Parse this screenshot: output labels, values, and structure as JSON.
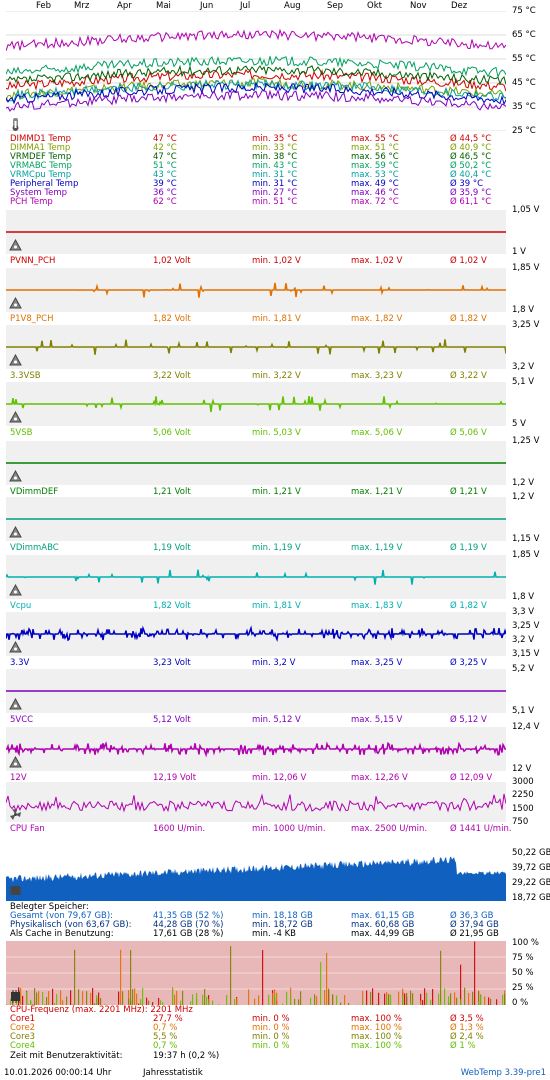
{
  "months": [
    "Feb",
    "Mrz",
    "Apr",
    "Mai",
    "Jun",
    "Jul",
    "Aug",
    "Sep",
    "Okt",
    "Nov",
    "Dez"
  ],
  "temp": {
    "axis": [
      "75 °C",
      "65 °C",
      "55 °C",
      "45 °C",
      "35 °C",
      "25 °C"
    ],
    "rows": [
      {
        "name": "DIMMD1 Temp",
        "cur": "47 °C",
        "min": "min. 35 °C",
        "max": "max. 55 °C",
        "avg": "Ø 44,5 °C",
        "color": "#d00000"
      },
      {
        "name": "DIMMA1 Temp",
        "cur": "42 °C",
        "min": "min. 33 °C",
        "max": "max. 51 °C",
        "avg": "Ø 40,9 °C",
        "color": "#80a000"
      },
      {
        "name": "VRMDEF Temp",
        "cur": "47 °C",
        "min": "min. 38 °C",
        "max": "max. 56 °C",
        "avg": "Ø 46,5 °C",
        "color": "#006000"
      },
      {
        "name": "VRMABC Temp",
        "cur": "51 °C",
        "min": "min. 43 °C",
        "max": "max. 59 °C",
        "avg": "Ø 50,2 °C",
        "color": "#00a060"
      },
      {
        "name": "VRMCpu Temp",
        "cur": "43 °C",
        "min": "min. 31 °C",
        "max": "max. 53 °C",
        "avg": "Ø 40,4 °C",
        "color": "#00a0a0"
      },
      {
        "name": "Peripheral Temp",
        "cur": "39 °C",
        "min": "min. 31 °C",
        "max": "max. 49 °C",
        "avg": "Ø 39 °C",
        "color": "#0000c0"
      },
      {
        "name": "System Temp",
        "cur": "36 °C",
        "min": "min. 27 °C",
        "max": "max. 46 °C",
        "avg": "Ø 35,9 °C",
        "color": "#8000c0"
      },
      {
        "name": "PCH Temp",
        "cur": "62 °C",
        "min": "min. 51 °C",
        "max": "max. 72 °C",
        "avg": "Ø 61,1 °C",
        "color": "#b000b0"
      }
    ]
  },
  "voltages": [
    {
      "name": "PVNN_PCH",
      "cur": "1,02 Volt",
      "min": "min. 1,02 V",
      "max": "max. 1,02 V",
      "avg": "Ø 1,02 V",
      "color": "#d00000",
      "axis": [
        "1,05 V",
        "1 V"
      ]
    },
    {
      "name": "P1V8_PCH",
      "cur": "1,82 Volt",
      "min": "min. 1,81 V",
      "max": "max. 1,82 V",
      "avg": "Ø 1,82 V",
      "color": "#e07000",
      "axis": [
        "1,85 V",
        "1,8 V"
      ]
    },
    {
      "name": "3.3VSB",
      "cur": "3,22 Volt",
      "min": "min. 3,22 V",
      "max": "max. 3,23 V",
      "avg": "Ø 3,22 V",
      "color": "#808000",
      "axis": [
        "3,25 V",
        "3,2 V"
      ]
    },
    {
      "name": "5VSB",
      "cur": "5,06 Volt",
      "min": "min. 5,03 V",
      "max": "max. 5,06 V",
      "avg": "Ø 5,06 V",
      "color": "#60c000",
      "axis": [
        "5,1 V",
        "5 V"
      ]
    },
    {
      "name": "VDimmDEF",
      "cur": "1,21 Volt",
      "min": "min. 1,21 V",
      "max": "max. 1,21 V",
      "avg": "Ø 1,21 V",
      "color": "#008000",
      "axis": [
        "1,25 V",
        "1,2 V"
      ]
    },
    {
      "name": "VDimmABC",
      "cur": "1,19 Volt",
      "min": "min. 1,19 V",
      "max": "max. 1,19 V",
      "avg": "Ø 1,19 V",
      "color": "#00a080",
      "axis": [
        "1,2 V",
        "1,15 V"
      ]
    },
    {
      "name": "Vcpu",
      "cur": "1,82 Volt",
      "min": "min. 1,81 V",
      "max": "max. 1,83 V",
      "avg": "Ø 1,82 V",
      "color": "#00b0b0",
      "axis": [
        "1,85 V",
        "1,8 V"
      ]
    },
    {
      "name": "3.3V",
      "cur": "3,23 Volt",
      "min": "min. 3,2 V",
      "max": "max. 3,25 V",
      "avg": "Ø 3,25 V",
      "color": "#0000c0",
      "axis": [
        "3,3 V",
        "3,25 V",
        "3,2 V",
        "3,15 V"
      ]
    },
    {
      "name": "5VCC",
      "cur": "5,12 Volt",
      "min": "min. 5,12 V",
      "max": "max. 5,15 V",
      "avg": "Ø 5,12 V",
      "color": "#8000c0",
      "axis": [
        "5,2 V",
        "5,1 V"
      ]
    },
    {
      "name": "12V",
      "cur": "12,19 Volt",
      "min": "min. 12,06 V",
      "max": "max. 12,26 V",
      "avg": "Ø 12,09 V",
      "color": "#b000b0",
      "axis": [
        "12,4 V",
        "12 V"
      ]
    }
  ],
  "fan": {
    "name": "CPU Fan",
    "cur": "1600 U/min.",
    "min": "min. 1000 U/min.",
    "max": "max. 2500 U/min.",
    "avg": "Ø 1441 U/min.",
    "color": "#b000b0",
    "axis": [
      "3000",
      "2250",
      "1500",
      "750"
    ]
  },
  "memory": {
    "axis": [
      "50,22 GB",
      "39,72 GB",
      "29,22 GB",
      "18,72 GB"
    ],
    "title": "Belegter Speicher:",
    "rows": [
      {
        "name": "Gesamt (von 79,67 GB):",
        "cur": "41,35 GB (52 %)",
        "min": "min. 18,18 GB",
        "max": "max. 61,15 GB",
        "avg": "Ø 36,3 GB",
        "color": "#1060c0"
      },
      {
        "name": "Physikalisch (von 63,67 GB):",
        "cur": "44,28 GB (70 %)",
        "min": "min. 18,72 GB",
        "max": "max. 60,68 GB",
        "avg": "Ø 37,94 GB",
        "color": "#003080"
      },
      {
        "name": "Als Cache in Benutzung:",
        "cur": "17,61 GB (28 %)",
        "min": "min. -4 KB",
        "max": "max. 44,99 GB",
        "avg": "Ø 21,95 GB",
        "color": "#000000"
      }
    ]
  },
  "cpu": {
    "axis": [
      "100 %",
      "75 %",
      "50 %",
      "25 %",
      "0 %"
    ],
    "freq": "CPU-Frequenz (max. 2201 MHz): 2201 MHz",
    "rows": [
      {
        "name": "Core1",
        "cur": "27,7 %",
        "min": "min. 0 %",
        "max": "max. 100 %",
        "avg": "Ø 3,5 %",
        "color": "#d00000"
      },
      {
        "name": "Core2",
        "cur": "0,7 %",
        "min": "min. 0 %",
        "max": "max. 100 %",
        "avg": "Ø 1,3 %",
        "color": "#e07000"
      },
      {
        "name": "Core3",
        "cur": "5,5 %",
        "min": "min. 0 %",
        "max": "max. 100 %",
        "avg": "Ø 2,4 %",
        "color": "#808000"
      },
      {
        "name": "Core4",
        "cur": "0,7 %",
        "min": "min. 0 %",
        "max": "max. 100 %",
        "avg": "Ø 1 %",
        "color": "#60c000"
      }
    ],
    "activity_label": "Zeit mit Benutzeraktivität:",
    "activity_value": "19:37 h (0,2 %)"
  },
  "footer": {
    "timestamp": "10.01.2026 00:00:14 Uhr",
    "mode": "Jahresstatistik",
    "version": "WebTemp 3.39-pre1"
  }
}
